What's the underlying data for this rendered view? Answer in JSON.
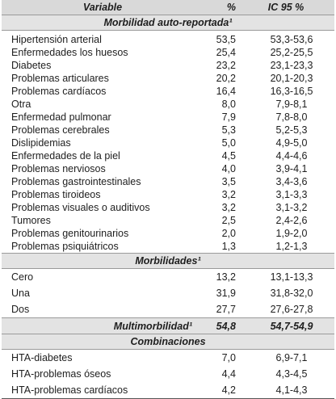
{
  "header": {
    "variable": "Variable",
    "pct": "%",
    "ic": "IC 95 %"
  },
  "sections": [
    {
      "title": "Morbilidad auto-reportada¹",
      "rows": [
        {
          "label": "Hipertensión arterial",
          "pct": "53,5",
          "ci": "53,3-53,6"
        },
        {
          "label": "Enfermedades los huesos",
          "pct": "25,4",
          "ci": "25,2-25,5"
        },
        {
          "label": "Diabetes",
          "pct": "23,2",
          "ci": "23,1-23,3"
        },
        {
          "label": "Problemas articulares",
          "pct": "20,2",
          "ci": "20,1-20,3"
        },
        {
          "label": "Problemas cardíacos",
          "pct": "16,4",
          "ci": "16,3-16,5"
        },
        {
          "label": "Otra",
          "pct": "8,0",
          "ci": "7,9-8,1"
        },
        {
          "label": "Enfermedad pulmonar",
          "pct": "7,9",
          "ci": "7,8-8,0"
        },
        {
          "label": "Problemas cerebrales",
          "pct": "5,3",
          "ci": "5,2-5,3"
        },
        {
          "label": "Dislipidemias",
          "pct": "5,0",
          "ci": "4,9-5,0"
        },
        {
          "label": "Enfermedades de la piel",
          "pct": "4,5",
          "ci": "4,4-4,6"
        },
        {
          "label": "Problemas nerviosos",
          "pct": "4,0",
          "ci": "3,9-4,1"
        },
        {
          "label": "Problemas gastrointestinales",
          "pct": "3,5",
          "ci": "3,4-3,6"
        },
        {
          "label": "Problemas tiroideos",
          "pct": "3,2",
          "ci": "3,1-3,3"
        },
        {
          "label": "Problemas visuales o auditivos",
          "pct": "3,2",
          "ci": "3,1-3,2"
        },
        {
          "label": "Tumores",
          "pct": "2,5",
          "ci": "2,4-2,6"
        },
        {
          "label": "Problemas genitourinarios",
          "pct": "2,0",
          "ci": "1,9-2,0"
        },
        {
          "label": "Problemas psiquiátricos",
          "pct": "1,3",
          "ci": "1,2-1,3"
        }
      ]
    },
    {
      "title": "Morbilidades¹",
      "rows": [
        {
          "label": "Cero",
          "pct": "13,2",
          "ci": "13,1-13,3"
        },
        {
          "label": "Una",
          "pct": "31,9",
          "ci": "31,8-32,0"
        },
        {
          "label": "Dos",
          "pct": "27,7",
          "ci": "27,6-27,8"
        }
      ]
    },
    {
      "title": "Combinaciones",
      "rows": [
        {
          "label": "HTA-diabetes",
          "pct": "7,0",
          "ci": "6,9-7,1"
        },
        {
          "label": "HTA-problemas óseos",
          "pct": "4,4",
          "ci": "4,3-4,5"
        },
        {
          "label": "HTA-problemas cardíacos",
          "pct": "4,2",
          "ci": "4,1-4,3"
        }
      ]
    }
  ],
  "multimorbilidad": {
    "label": "Multimorbilidad¹",
    "pct": "54,8",
    "ci": "54,7-54,9"
  }
}
